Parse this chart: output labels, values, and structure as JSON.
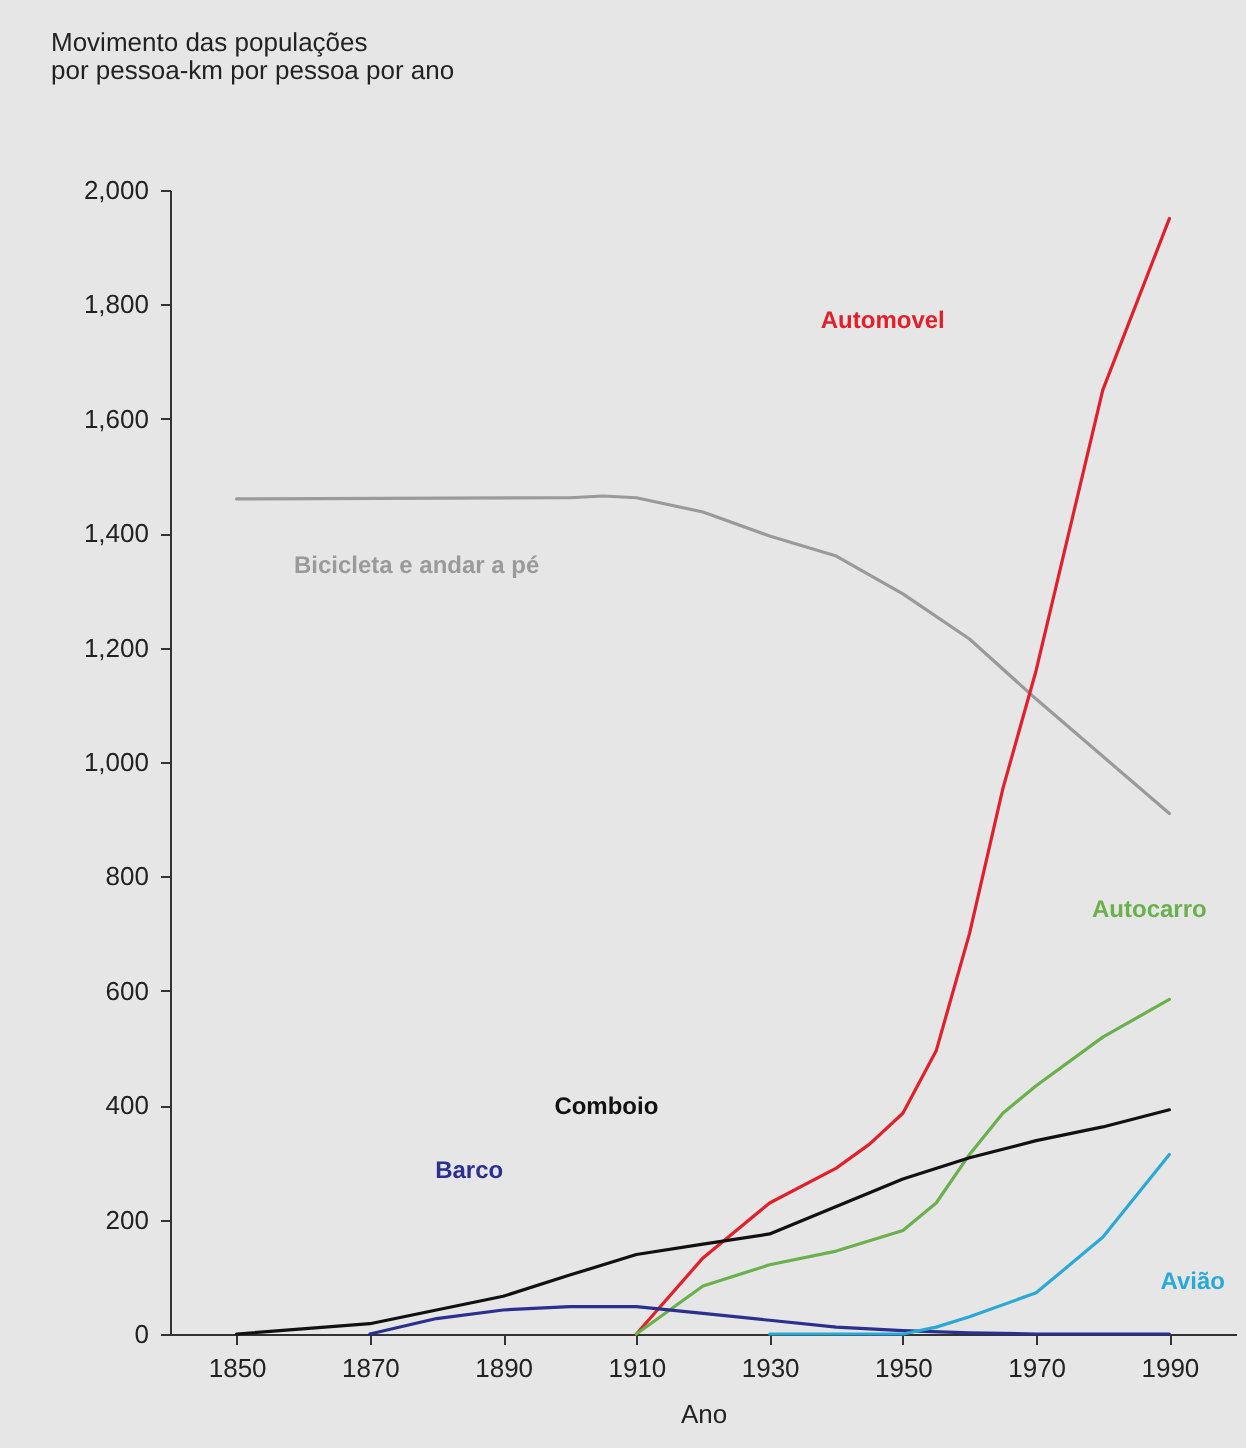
{
  "chart_data": {
    "type": "line",
    "ylabel": "Movimento das populações\npor pessoa-km por pessoa por ano",
    "xlabel": "Ano",
    "xlim": [
      1840,
      2000
    ],
    "xticks": [
      1850,
      1870,
      1890,
      1910,
      1930,
      1950,
      1970,
      1990
    ],
    "ylim": [
      0,
      2000
    ],
    "yticks": [
      0,
      200,
      400,
      600,
      800,
      {
        "value": 1000,
        "label": "1,000"
      },
      {
        "value": 1200,
        "label": "1,200"
      },
      {
        "value": 1400,
        "label": "1,400"
      },
      {
        "value": 1600,
        "label": "1,600"
      },
      {
        "value": 1800,
        "label": "1,800"
      },
      {
        "value": 2000,
        "label": "2,000"
      }
    ],
    "marker": "none",
    "line_style": "solid",
    "series": [
      {
        "name": "Bicicleta e andar a pé",
        "color": "#9a9a9a",
        "x": [
          1850,
          1900,
          1905,
          1910,
          1920,
          1930,
          1940,
          1950,
          1960,
          1970,
          1980,
          1990
        ],
        "values": [
          1460,
          1462,
          1465,
          1462,
          1437,
          1395,
          1360,
          1294,
          1215,
          1110,
          1010,
          910
        ]
      },
      {
        "name": "Automovel",
        "color": "#e0202a",
        "x": [
          1910,
          1920,
          1930,
          1940,
          1945,
          1950,
          1955,
          1960,
          1965,
          1970,
          1980,
          1990
        ],
        "values": [
          0,
          133,
          229,
          290,
          332,
          386,
          495,
          700,
          953,
          1160,
          1650,
          1950
        ]
      },
      {
        "name": "Autocarro",
        "color": "#6ab04c",
        "x": [
          1910,
          1920,
          1930,
          1940,
          1950,
          1955,
          1960,
          1965,
          1970,
          1980,
          1990
        ],
        "values": [
          0,
          84,
          121,
          145,
          181,
          229,
          314,
          386,
          434,
          519,
          585
        ]
      },
      {
        "name": "Comboio",
        "color": "#111111",
        "x": [
          1850,
          1870,
          1880,
          1890,
          1900,
          1910,
          1920,
          1930,
          1940,
          1950,
          1960,
          1970,
          1980,
          1990
        ],
        "values": [
          0,
          18,
          42,
          66,
          103,
          139,
          157,
          175,
          223,
          271,
          308,
          338,
          362,
          392
        ]
      },
      {
        "name": "Barco",
        "color": "#2b2f8f",
        "x": [
          1870,
          1880,
          1890,
          1900,
          1910,
          1920,
          1930,
          1940,
          1950,
          1960,
          1970,
          1990
        ],
        "values": [
          0,
          27,
          42,
          48,
          48,
          36,
          24,
          12,
          6,
          2,
          0,
          0
        ]
      },
      {
        "name": "Avião",
        "color": "#2aa9d6",
        "x": [
          1930,
          1950,
          1955,
          1960,
          1970,
          1980,
          1990
        ],
        "values": [
          0,
          0,
          12,
          30,
          72,
          169,
          314
        ]
      }
    ]
  }
}
